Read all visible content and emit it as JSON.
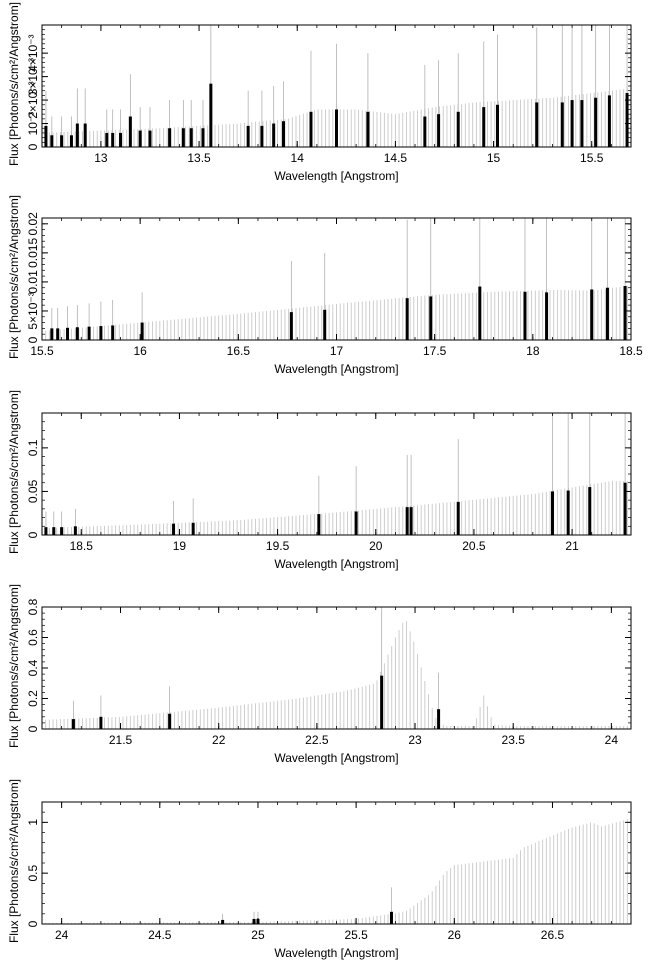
{
  "page": {
    "background": "#ffffff",
    "series_color": "#000000",
    "continuum_color": "#c8c8c8"
  },
  "chart_data": [
    {
      "type": "bar",
      "xlabel": "Wavelength [Angstrom]",
      "ylabel": "Flux [Photons/s/cm²/Angstrom]",
      "xlim": [
        12.7,
        15.7
      ],
      "ylim": [
        0,
        0.0052
      ],
      "xticks": [
        13,
        13.5,
        14,
        14.5,
        15,
        15.5
      ],
      "xtick_labels": [
        "13",
        "13.5",
        "14",
        "14.5",
        "15",
        "15.5"
      ],
      "yticks": [
        0,
        0.001,
        0.002,
        0.003,
        0.004
      ],
      "ytick_labels": [
        "0",
        "10⁻³",
        "2×10⁻³",
        "3×10⁻³",
        "4×10⁻³"
      ],
      "continuum": {
        "x": [
          12.7,
          13.3,
          13.7,
          13.95,
          14.1,
          14.3,
          14.5,
          14.7,
          14.9,
          15.1,
          15.3,
          15.5,
          15.7
        ],
        "y": [
          0.0006,
          0.0008,
          0.001,
          0.0012,
          0.0016,
          0.0016,
          0.0014,
          0.0017,
          0.0019,
          0.002,
          0.0021,
          0.0023,
          0.0025
        ]
      },
      "lines": [
        {
          "x": 12.72,
          "y": 0.0009,
          "err": 0.0015
        },
        {
          "x": 12.75,
          "y": 0.0005,
          "err": 0.0008
        },
        {
          "x": 12.8,
          "y": 0.0005,
          "err": 0.0008
        },
        {
          "x": 12.85,
          "y": 0.0005,
          "err": 0.0008
        },
        {
          "x": 12.88,
          "y": 0.001,
          "err": 0.0015
        },
        {
          "x": 12.92,
          "y": 0.001,
          "err": 0.0015
        },
        {
          "x": 13.03,
          "y": 0.0006,
          "err": 0.001
        },
        {
          "x": 13.06,
          "y": 0.0006,
          "err": 0.001
        },
        {
          "x": 13.1,
          "y": 0.0006,
          "err": 0.001
        },
        {
          "x": 13.15,
          "y": 0.0013,
          "err": 0.0018
        },
        {
          "x": 13.2,
          "y": 0.0007,
          "err": 0.001
        },
        {
          "x": 13.25,
          "y": 0.0007,
          "err": 0.001
        },
        {
          "x": 13.35,
          "y": 0.0008,
          "err": 0.0012
        },
        {
          "x": 13.42,
          "y": 0.0008,
          "err": 0.0012
        },
        {
          "x": 13.46,
          "y": 0.0008,
          "err": 0.0012
        },
        {
          "x": 13.52,
          "y": 0.0008,
          "err": 0.0012
        },
        {
          "x": 13.56,
          "y": 0.0027,
          "err": 0.0041
        },
        {
          "x": 13.75,
          "y": 0.0009,
          "err": 0.0015
        },
        {
          "x": 13.82,
          "y": 0.0009,
          "err": 0.0015
        },
        {
          "x": 13.88,
          "y": 0.001,
          "err": 0.0016
        },
        {
          "x": 13.93,
          "y": 0.0011,
          "err": 0.0017
        },
        {
          "x": 14.07,
          "y": 0.0015,
          "err": 0.0026
        },
        {
          "x": 14.2,
          "y": 0.0016,
          "err": 0.0028
        },
        {
          "x": 14.36,
          "y": 0.0015,
          "err": 0.0025
        },
        {
          "x": 14.65,
          "y": 0.0013,
          "err": 0.0022
        },
        {
          "x": 14.72,
          "y": 0.0014,
          "err": 0.0023
        },
        {
          "x": 14.82,
          "y": 0.0015,
          "err": 0.0025
        },
        {
          "x": 14.95,
          "y": 0.0017,
          "err": 0.0028
        },
        {
          "x": 15.02,
          "y": 0.0018,
          "err": 0.003
        },
        {
          "x": 15.22,
          "y": 0.0019,
          "err": 0.0032
        },
        {
          "x": 15.35,
          "y": 0.0019,
          "err": 0.0033
        },
        {
          "x": 15.4,
          "y": 0.002,
          "err": 0.0034
        },
        {
          "x": 15.45,
          "y": 0.002,
          "err": 0.0034
        },
        {
          "x": 15.52,
          "y": 0.0021,
          "err": 0.0036
        },
        {
          "x": 15.59,
          "y": 0.0022,
          "err": 0.0037
        },
        {
          "x": 15.68,
          "y": 0.0023,
          "err": 0.0039
        }
      ]
    },
    {
      "type": "bar",
      "xlabel": "Wavelength [Angstrom]",
      "ylabel": "Flux [Photons/s/cm²/Angstrom]",
      "xlim": [
        15.5,
        18.5
      ],
      "ylim": [
        0,
        0.021
      ],
      "xticks": [
        15.5,
        16,
        16.5,
        17,
        17.5,
        18,
        18.5
      ],
      "xtick_labels": [
        "15.5",
        "16",
        "16.5",
        "17",
        "17.5",
        "18",
        "18.5"
      ],
      "yticks": [
        0,
        0.005,
        0.01,
        0.015,
        0.02
      ],
      "ytick_labels": [
        "0",
        "5×10⁻³",
        "0.01",
        "0.015",
        "0.02"
      ],
      "continuum": {
        "x": [
          15.5,
          16.0,
          16.5,
          17.0,
          17.5,
          17.8,
          18.1,
          18.3,
          18.5
        ],
        "y": [
          0.0015,
          0.003,
          0.0045,
          0.0062,
          0.0078,
          0.0083,
          0.0086,
          0.0085,
          0.0094
        ]
      },
      "lines": [
        {
          "x": 15.55,
          "y": 0.002,
          "err": 0.0035
        },
        {
          "x": 15.58,
          "y": 0.002,
          "err": 0.0035
        },
        {
          "x": 15.63,
          "y": 0.0021,
          "err": 0.0037
        },
        {
          "x": 15.68,
          "y": 0.0022,
          "err": 0.0038
        },
        {
          "x": 15.74,
          "y": 0.0023,
          "err": 0.004
        },
        {
          "x": 15.8,
          "y": 0.0024,
          "err": 0.0042
        },
        {
          "x": 15.86,
          "y": 0.0025,
          "err": 0.0044
        },
        {
          "x": 16.01,
          "y": 0.003,
          "err": 0.0052
        },
        {
          "x": 16.77,
          "y": 0.0048,
          "err": 0.0088
        },
        {
          "x": 16.94,
          "y": 0.0052,
          "err": 0.0098
        },
        {
          "x": 17.36,
          "y": 0.0072,
          "err": 0.0135
        },
        {
          "x": 17.48,
          "y": 0.0075,
          "err": 0.0142
        },
        {
          "x": 17.73,
          "y": 0.0092,
          "err": 0.0175
        },
        {
          "x": 17.96,
          "y": 0.0083,
          "err": 0.0158
        },
        {
          "x": 18.07,
          "y": 0.0082,
          "err": 0.0155
        },
        {
          "x": 18.3,
          "y": 0.0087,
          "err": 0.0164
        },
        {
          "x": 18.38,
          "y": 0.009,
          "err": 0.0175
        },
        {
          "x": 18.47,
          "y": 0.0093,
          "err": 0.0182
        }
      ]
    },
    {
      "type": "bar",
      "xlabel": "Wavelength [Angstrom]",
      "ylabel": "Flux [Photons/s/cm²/Angstrom]",
      "xlim": [
        18.3,
        21.3
      ],
      "ylim": [
        0,
        0.14
      ],
      "xticks": [
        18.5,
        19,
        19.5,
        20,
        20.5,
        21
      ],
      "xtick_labels": [
        "18.5",
        "19",
        "19.5",
        "20",
        "20.5",
        "21"
      ],
      "yticks": [
        0,
        0.05,
        0.1
      ],
      "ytick_labels": [
        "0",
        "0.05",
        "0.1"
      ],
      "continuum": {
        "x": [
          18.3,
          18.8,
          19.3,
          19.8,
          20.3,
          20.8,
          21.2,
          21.3
        ],
        "y": [
          0.008,
          0.012,
          0.017,
          0.026,
          0.036,
          0.047,
          0.062,
          0.062
        ]
      },
      "lines": [
        {
          "x": 18.32,
          "y": 0.009,
          "err": 0.018
        },
        {
          "x": 18.36,
          "y": 0.009,
          "err": 0.018
        },
        {
          "x": 18.4,
          "y": 0.009,
          "err": 0.018
        },
        {
          "x": 18.47,
          "y": 0.01,
          "err": 0.02
        },
        {
          "x": 18.97,
          "y": 0.013,
          "err": 0.026
        },
        {
          "x": 19.07,
          "y": 0.014,
          "err": 0.028
        },
        {
          "x": 19.71,
          "y": 0.024,
          "err": 0.044
        },
        {
          "x": 19.9,
          "y": 0.027,
          "err": 0.052
        },
        {
          "x": 20.16,
          "y": 0.032,
          "err": 0.06
        },
        {
          "x": 20.18,
          "y": 0.032,
          "err": 0.06
        },
        {
          "x": 20.42,
          "y": 0.038,
          "err": 0.072
        },
        {
          "x": 20.9,
          "y": 0.05,
          "err": 0.098
        },
        {
          "x": 20.98,
          "y": 0.051,
          "err": 0.1
        },
        {
          "x": 21.09,
          "y": 0.055,
          "err": 0.11
        },
        {
          "x": 21.27,
          "y": 0.06,
          "err": 0.124
        }
      ]
    },
    {
      "type": "bar",
      "xlabel": "Wavelength [Angstrom]",
      "ylabel": "Flux [Photons/s/cm²/Angstrom]",
      "xlim": [
        21.1,
        24.1
      ],
      "ylim": [
        0,
        0.8
      ],
      "xticks": [
        21.5,
        22,
        22.5,
        23,
        23.5,
        24
      ],
      "xtick_labels": [
        "21.5",
        "22",
        "22.5",
        "23",
        "23.5",
        "24"
      ],
      "yticks": [
        0,
        0.2,
        0.4,
        0.6,
        0.8
      ],
      "ytick_labels": [
        "0",
        "0.2",
        "0.4",
        "0.6",
        "0.8"
      ],
      "continuum": {
        "x": [
          21.1,
          21.5,
          22.0,
          22.4,
          22.65,
          22.8,
          22.9,
          22.95,
          23.0,
          23.1,
          23.15,
          23.3,
          23.35,
          23.4,
          23.5,
          24.1
        ],
        "y": [
          0.06,
          0.08,
          0.14,
          0.2,
          0.25,
          0.3,
          0.6,
          0.73,
          0.55,
          0.08,
          0.02,
          0.02,
          0.22,
          0.03,
          0.02,
          0.02
        ]
      },
      "lines": [
        {
          "x": 21.26,
          "y": 0.065,
          "err": 0.12
        },
        {
          "x": 21.4,
          "y": 0.08,
          "err": 0.14
        },
        {
          "x": 21.75,
          "y": 0.1,
          "err": 0.18
        },
        {
          "x": 22.83,
          "y": 0.35,
          "err": 0.7
        },
        {
          "x": 23.12,
          "y": 0.13,
          "err": 0.24
        }
      ]
    },
    {
      "type": "bar",
      "xlabel": "Wavelength [Angstrom]",
      "ylabel": "Flux [Photons/s/cm²/Angstrom]",
      "xlim": [
        23.9,
        26.9
      ],
      "ylim": [
        0,
        1.2
      ],
      "xticks": [
        24,
        24.5,
        25,
        25.5,
        26,
        26.5
      ],
      "xtick_labels": [
        "24",
        "24.5",
        "25",
        "25.5",
        "26",
        "26.5"
      ],
      "yticks": [
        0,
        0.5,
        1
      ],
      "ytick_labels": [
        "0",
        "0.5",
        "1"
      ],
      "continuum": {
        "x": [
          23.9,
          25.0,
          25.5,
          25.75,
          25.88,
          25.95,
          26.0,
          26.3,
          26.35,
          26.6,
          26.7,
          26.75,
          26.9
        ],
        "y": [
          0.01,
          0.02,
          0.05,
          0.12,
          0.3,
          0.5,
          0.58,
          0.65,
          0.75,
          0.95,
          1.0,
          0.96,
          1.04
        ]
      },
      "lines": [
        {
          "x": 24.82,
          "y": 0.04,
          "err": 0.06
        },
        {
          "x": 24.98,
          "y": 0.05,
          "err": 0.07
        },
        {
          "x": 25.0,
          "y": 0.05,
          "err": 0.07
        },
        {
          "x": 25.68,
          "y": 0.12,
          "err": 0.24
        }
      ]
    }
  ]
}
